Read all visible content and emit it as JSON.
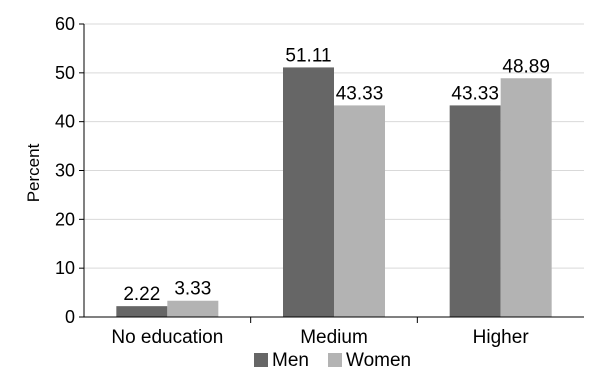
{
  "chart_data": {
    "type": "bar",
    "categories": [
      "No education",
      "Medium",
      "Higher"
    ],
    "series": [
      {
        "name": "Men",
        "values": [
          2.22,
          51.11,
          43.33
        ],
        "color": "#666666"
      },
      {
        "name": "Women",
        "values": [
          3.33,
          43.33,
          48.89
        ],
        "color": "#b3b3b3"
      }
    ],
    "data_labels": [
      [
        "2.22",
        "51.11",
        "43.33"
      ],
      [
        "3.33",
        "43.33",
        "48.89"
      ]
    ],
    "title": "",
    "xlabel": "",
    "ylabel": "Percent",
    "ylim": [
      0,
      60
    ],
    "yticks": [
      "0",
      "10",
      "20",
      "30",
      "40",
      "50",
      "60"
    ],
    "grid": true,
    "legend": "bottom-center",
    "colors": {
      "grid": "#d9d9d9",
      "axis": "#000000"
    }
  }
}
